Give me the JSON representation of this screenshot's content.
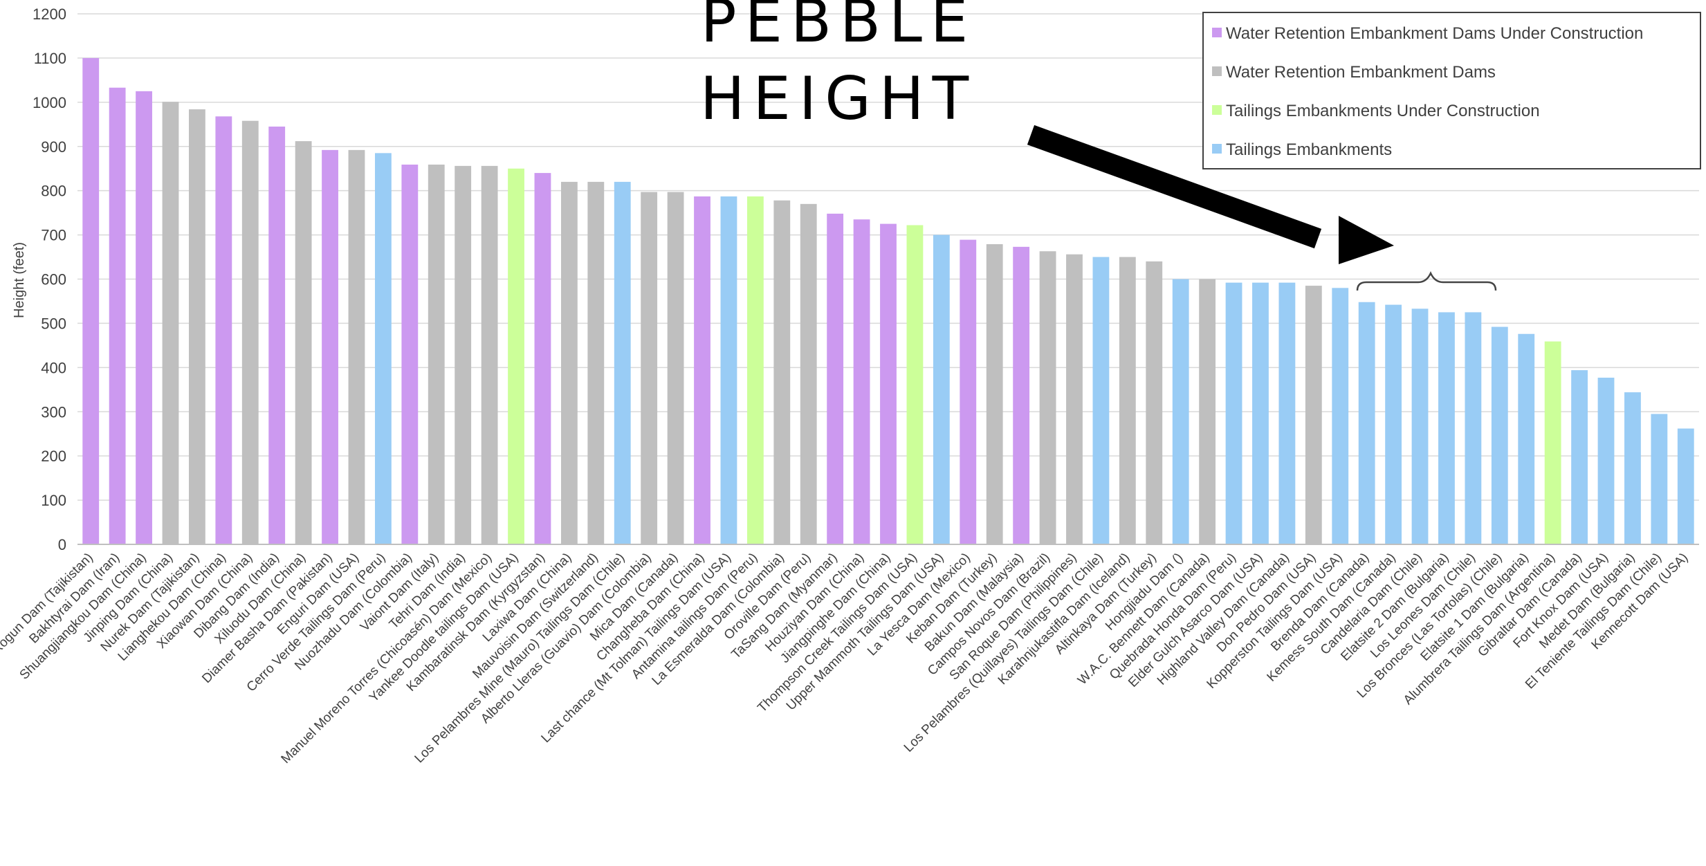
{
  "chart_data": {
    "type": "bar",
    "title": "",
    "xlabel": "",
    "ylabel": "Height (feet)",
    "ylim": [
      0,
      1200
    ],
    "yticks": [
      0,
      100,
      200,
      300,
      400,
      500,
      600,
      700,
      800,
      900,
      1000,
      1100,
      1200
    ],
    "grid": true,
    "legend_position": "top-right",
    "annotation_lines": [
      "PEBBLE",
      "HEIGHT"
    ],
    "series": [
      {
        "name": "Water Retention Embankment Dams Under Construction",
        "color": "#cc99f0"
      },
      {
        "name": "Water Retention Embankment Dams",
        "color": "#bfbfbf"
      },
      {
        "name": "Tailings Embankments Under Construction",
        "color": "#ccff99"
      },
      {
        "name": "Tailings Embankments",
        "color": "#99ccf5"
      }
    ],
    "bars": [
      {
        "label": "Rogun Dam (Tajikistan)",
        "value": 1100,
        "series": 0
      },
      {
        "label": "Bakhtyrai Dam (Iran)",
        "value": 1033,
        "series": 0
      },
      {
        "label": "Shuangjiangkou Dam (China)",
        "value": 1025,
        "series": 0
      },
      {
        "label": "Jinping Dam (China)",
        "value": 1001,
        "series": 1
      },
      {
        "label": "Nurek Dam (Tajikistan)",
        "value": 984,
        "series": 1
      },
      {
        "label": "Lianghekou Dam (China)",
        "value": 968,
        "series": 0
      },
      {
        "label": "Xiaowan Dam (China)",
        "value": 958,
        "series": 1
      },
      {
        "label": "Dibang Dam (India)",
        "value": 945,
        "series": 0
      },
      {
        "label": "Xiluodu Dam (China)",
        "value": 912,
        "series": 1
      },
      {
        "label": "Diamer Basha Dam (Pakistan)",
        "value": 892,
        "series": 0
      },
      {
        "label": "Enguri Dam (USA)",
        "value": 892,
        "series": 1
      },
      {
        "label": "Cerro Verde Tailings Dam (Peru)",
        "value": 885,
        "series": 3
      },
      {
        "label": "Nuozhadu Dam (Colombia)",
        "value": 859,
        "series": 0
      },
      {
        "label": "Vaiont Dam (Italy)",
        "value": 859,
        "series": 1
      },
      {
        "label": "Tehri Dam (India)",
        "value": 856,
        "series": 1
      },
      {
        "label": "Manuel Moreno Torres (Chicoasén) Dam (Mexico)",
        "value": 856,
        "series": 1
      },
      {
        "label": "Yankee Doodle tailings Dam (USA)",
        "value": 850,
        "series": 2
      },
      {
        "label": "Kambaratinsk Dam (Kyrgyzstan)",
        "value": 840,
        "series": 0
      },
      {
        "label": "Laxiwa Dam (China)",
        "value": 820,
        "series": 1
      },
      {
        "label": "Mauvoisin Dam (Switzerland)",
        "value": 820,
        "series": 1
      },
      {
        "label": "Los Pelambres Mine (Mauro) Tailings Dam (Chile)",
        "value": 820,
        "series": 3
      },
      {
        "label": "Alberto Lleras (Guavio) Dam (Colombia)",
        "value": 797,
        "series": 1
      },
      {
        "label": "Mica Dam (Canada)",
        "value": 797,
        "series": 1
      },
      {
        "label": "Changheba Dam (China)",
        "value": 787,
        "series": 0
      },
      {
        "label": "Last chance (Mt Tolman) Tailings Dam (USA)",
        "value": 787,
        "series": 3
      },
      {
        "label": "Antamina tailings Dam (Peru)",
        "value": 787,
        "series": 2
      },
      {
        "label": "La Esmeralda Dam (Colombia)",
        "value": 778,
        "series": 1
      },
      {
        "label": "Oroville Dam (Peru)",
        "value": 770,
        "series": 1
      },
      {
        "label": "TaSang Dam (Myanmar)",
        "value": 748,
        "series": 0
      },
      {
        "label": "Houziyan Dam (China)",
        "value": 735,
        "series": 0
      },
      {
        "label": "Jiangpinghe Dam (China)",
        "value": 725,
        "series": 0
      },
      {
        "label": "Thompson Creek Tailings Dam (USA)",
        "value": 722,
        "series": 2
      },
      {
        "label": "Upper Mammoth Tailings Dam (USA)",
        "value": 700,
        "series": 3
      },
      {
        "label": "La Yesca Dam (Mexico)",
        "value": 689,
        "series": 0
      },
      {
        "label": "Keban Dam (Turkey)",
        "value": 679,
        "series": 1
      },
      {
        "label": "Bakun Dam (Malaysia)",
        "value": 673,
        "series": 0
      },
      {
        "label": "Campos Novos Dam (Brazil)",
        "value": 663,
        "series": 1
      },
      {
        "label": "San Roque Dam (Philippines)",
        "value": 656,
        "series": 1
      },
      {
        "label": "Los Pelambres (Quillayes) Tailings Dam (Chile)",
        "value": 650,
        "series": 3
      },
      {
        "label": "Karahnjukastifla Dam (Iceland)",
        "value": 650,
        "series": 1
      },
      {
        "label": "Altinkaya Dam (Turkey)",
        "value": 640,
        "series": 1
      },
      {
        "label": "Hongjiadu Dam ()",
        "value": 600,
        "series": 3
      },
      {
        "label": "W.A.C. Bennett Dam (Canada)",
        "value": 600,
        "series": 1
      },
      {
        "label": "Quebrada Honda Dam (Peru)",
        "value": 592,
        "series": 3
      },
      {
        "label": "Elder Gulch Asarco Dam (USA)",
        "value": 592,
        "series": 3
      },
      {
        "label": "Highland Valley Dam (Canada)",
        "value": 592,
        "series": 3
      },
      {
        "label": "Don Pedro Dam (USA)",
        "value": 585,
        "series": 1
      },
      {
        "label": "Kopperston Tailings Dam (USA)",
        "value": 580,
        "series": 3
      },
      {
        "label": "Brenda Dam (Canada)",
        "value": 548,
        "series": 3
      },
      {
        "label": "Kemess South Dam (Canada)",
        "value": 542,
        "series": 3
      },
      {
        "label": "Candelaria Dam (Chile)",
        "value": 533,
        "series": 3
      },
      {
        "label": "Elatsite 2 Dam (Bulgaria)",
        "value": 525,
        "series": 3
      },
      {
        "label": "Los Leones Dam (Chile)",
        "value": 525,
        "series": 3
      },
      {
        "label": "Los Bronces (Las Tortolas) (Chile)",
        "value": 492,
        "series": 3
      },
      {
        "label": "Elatsite 1 Dam (Bulgaria)",
        "value": 476,
        "series": 3
      },
      {
        "label": "Alumbrera Tailings Dam (Argentina)",
        "value": 459,
        "series": 2
      },
      {
        "label": "Gibraltar Dam (Canada)",
        "value": 394,
        "series": 3
      },
      {
        "label": "Fort Knox Dam (USA)",
        "value": 377,
        "series": 3
      },
      {
        "label": "Medet Dam (Bulgaria)",
        "value": 344,
        "series": 3
      },
      {
        "label": "El Teniente Tailings Dam (Chile)",
        "value": 295,
        "series": 3
      },
      {
        "label": "Kennecott Dam (USA)",
        "value": 262,
        "series": 3
      }
    ]
  }
}
